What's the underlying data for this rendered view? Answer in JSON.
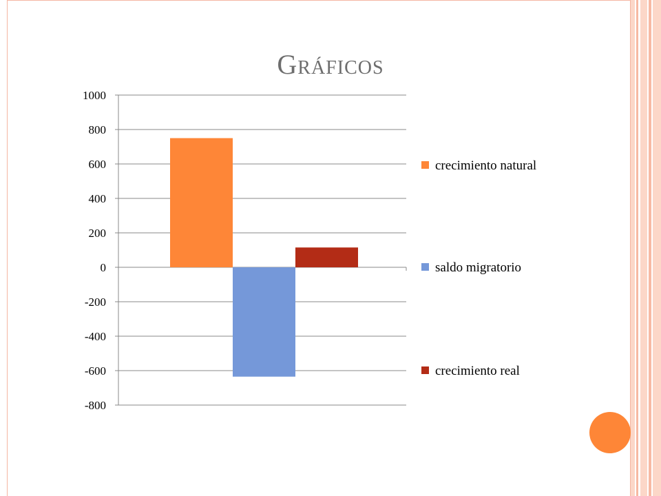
{
  "slide": {
    "title": "Gráficos"
  },
  "colors": {
    "accent_orange": "#fe8637",
    "frame": "#f4b6a2",
    "stripe_light": "#fcd7c8",
    "stripe_mid": "#f7b9a3",
    "gridline": "#888888",
    "text": "#000000",
    "title": "#6d6d6d"
  },
  "chart_data": {
    "type": "bar",
    "title": "",
    "xlabel": "",
    "ylabel": "",
    "ylim": [
      -800,
      1000
    ],
    "yticks": [
      1000,
      800,
      600,
      400,
      200,
      0,
      -200,
      -400,
      -600,
      -800
    ],
    "grid": true,
    "legend_position": "right",
    "series": [
      {
        "name": "crecimiento natural",
        "value": 750,
        "color": "#fe8637"
      },
      {
        "name": "saldo migratorio",
        "value": -635,
        "color": "#7598d9"
      },
      {
        "name": "crecimiento real",
        "value": 115,
        "color": "#b32c16"
      }
    ]
  }
}
